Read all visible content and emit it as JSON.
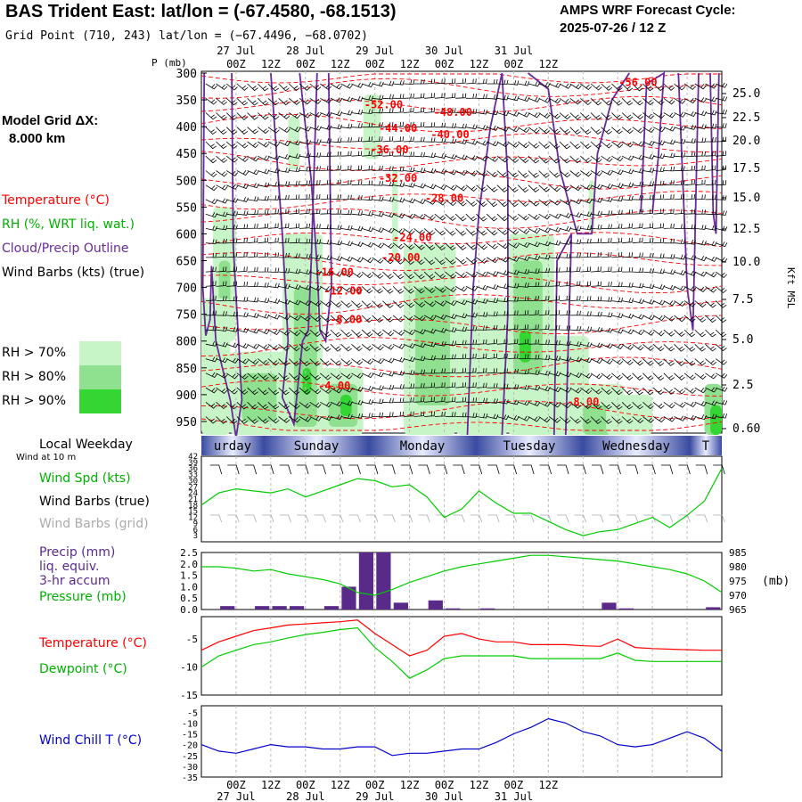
{
  "header": {
    "title": "BAS Trident East:  lat/lon = (-67.4580, -68.1513)",
    "subtitle": "Grid Point (710, 243) lat/lon = (−67.4496, −68.0702)",
    "cycle_line1": "AMPS WRF Forecast Cycle:",
    "cycle_line2": "2025-07-26 / 12  Z"
  },
  "model_grid": {
    "line1": "Model Grid ΔX:",
    "line2": "8.000 km"
  },
  "legend": {
    "temperature": "Temperature (°C)",
    "rh": "RH (%, WRT liq. wat.)",
    "cloud": "Cloud/Precip Outline",
    "wind": "Wind Barbs (kts) (true)",
    "rh70": "RH > 70%",
    "rh80": "RH > 80%",
    "rh90": "RH > 90%"
  },
  "colors": {
    "temp": "#ff0000",
    "rh": "#00b000",
    "cloud": "#6a2a9a",
    "wind_true": "#000000",
    "wind_grid": "#aaaaaa",
    "precip": "#5a2a8a",
    "pressure": "#00cc00",
    "dewpoint": "#00cc00",
    "windchill": "#0000cc",
    "rh70": "#c8f5c8",
    "rh80": "#8fe08f",
    "rh90": "#33d633",
    "weekday_band": "#3a4aa0"
  },
  "time_axis": {
    "top_labels": [
      {
        "hour": "00Z",
        "date": "27 Jul"
      },
      {
        "hour": "12Z",
        "date": ""
      },
      {
        "hour": "00Z",
        "date": "28 Jul"
      },
      {
        "hour": "12Z",
        "date": ""
      },
      {
        "hour": "00Z",
        "date": "29 Jul"
      },
      {
        "hour": "12Z",
        "date": ""
      },
      {
        "hour": "00Z",
        "date": "30 Jul"
      },
      {
        "hour": "12Z",
        "date": ""
      },
      {
        "hour": "00Z",
        "date": "31 Jul"
      },
      {
        "hour": "12Z",
        "date": ""
      }
    ],
    "weekday_label": "Local Weekday",
    "weekdays": [
      "urday",
      "Sunday",
      "Monday",
      "Tuesday",
      "Wednesday",
      "T"
    ]
  },
  "upper_panel": {
    "ylabel": "P (mb)",
    "pressure_ticks": [
      300,
      350,
      400,
      450,
      500,
      550,
      600,
      650,
      700,
      750,
      800,
      850,
      900,
      950
    ],
    "kft_ticks": [
      "25.0",
      "22.5",
      "20.0",
      "17.5",
      "15.0",
      "12.5",
      "10.0",
      "7.5",
      "5.0",
      "2.5",
      "0.60"
    ],
    "kft_label": "Kft MSL",
    "isotherm_labels": [
      "-56.00",
      "-52.00",
      "-48.00",
      "-44.00",
      "-40.00",
      "-36.00",
      "-32.00",
      "-28.00",
      "-24.00",
      "-20.00",
      "-16.00",
      "-12.00",
      "-8.00",
      "-8.00",
      "-4.00"
    ]
  },
  "wind_panel": {
    "labels": [
      "Wind at 10 m",
      "Wind Spd (kts)",
      "Wind Barbs (true)",
      "Wind Barbs (grid)"
    ],
    "y_ticks": [
      42,
      39,
      36,
      33,
      30,
      27,
      24,
      21,
      18,
      15,
      12,
      9,
      6,
      3
    ]
  },
  "precip_panel": {
    "labels": [
      "Precip (mm)",
      "liq. equiv.",
      "3-hr accum",
      "Pressure (mb)"
    ],
    "left_ticks": [
      "2.5",
      "2.0",
      "1.5",
      "1.0",
      "0.5",
      "0.0"
    ],
    "right_ticks": [
      985,
      980,
      975,
      970,
      965
    ],
    "right_unit": "(mb)"
  },
  "temp_panel": {
    "labels": [
      "Temperature (°C)",
      "Dewpoint (°C)"
    ],
    "y_ticks": [
      -5,
      -10,
      -15
    ]
  },
  "chill_panel": {
    "labels": [
      "Wind Chill T (°C)"
    ],
    "y_ticks": [
      -5,
      -10,
      -15,
      -20,
      -25,
      -30,
      -35
    ]
  },
  "chart_data": [
    {
      "type": "line",
      "name": "Wind Spd (kts)",
      "x_hours": [
        0,
        6,
        12,
        18,
        24,
        30,
        36,
        42,
        48,
        54,
        60,
        66,
        72,
        78,
        84,
        90,
        96,
        102,
        108,
        114,
        120,
        126,
        132,
        138,
        144,
        150,
        156,
        162,
        168,
        174,
        180
      ],
      "values": [
        18,
        24,
        26,
        25,
        24,
        26,
        22,
        25,
        28,
        31,
        30,
        27,
        28,
        22,
        12,
        16,
        25,
        19,
        14,
        14,
        10,
        6,
        3,
        5,
        6,
        9,
        12,
        7,
        13,
        20,
        36
      ],
      "ylim": [
        0,
        42
      ]
    },
    {
      "type": "bar",
      "name": "Precip (mm)",
      "x_hours": [
        3,
        9,
        15,
        21,
        27,
        33,
        39,
        45,
        51,
        57,
        63,
        69,
        75,
        81,
        87,
        93,
        99,
        105,
        111,
        117,
        123,
        129,
        135,
        141,
        147,
        153,
        159,
        165,
        171,
        177
      ],
      "values": [
        0.0,
        0.15,
        0.0,
        0.15,
        0.15,
        0.15,
        0.0,
        0.15,
        1.0,
        2.5,
        2.5,
        0.3,
        0.0,
        0.4,
        0.05,
        0.0,
        0.05,
        0.0,
        0.0,
        0.0,
        0.0,
        0.0,
        0.0,
        0.3,
        0.05,
        0.0,
        0.0,
        0.0,
        0.0,
        0.1
      ],
      "ylim": [
        0,
        2.5
      ]
    },
    {
      "type": "line",
      "name": "Pressure (mb)",
      "x_hours": [
        0,
        6,
        12,
        18,
        24,
        30,
        36,
        42,
        48,
        54,
        60,
        66,
        72,
        78,
        84,
        90,
        96,
        102,
        108,
        114,
        120,
        126,
        132,
        138,
        144,
        150,
        156,
        162,
        168,
        174,
        180
      ],
      "values": [
        980,
        980,
        979.5,
        978.5,
        979,
        977.5,
        976.5,
        975.5,
        974,
        971,
        970,
        972,
        974.5,
        976.5,
        978.5,
        980,
        981,
        982,
        983,
        984,
        984,
        983.5,
        983,
        982.5,
        982,
        981,
        980,
        979,
        977.5,
        975,
        971
      ],
      "ylim": [
        965,
        985
      ]
    },
    {
      "type": "line",
      "name": "Temperature (°C)",
      "x_hours": [
        0,
        6,
        12,
        18,
        24,
        30,
        36,
        42,
        48,
        54,
        60,
        66,
        72,
        78,
        84,
        90,
        96,
        102,
        108,
        114,
        120,
        126,
        132,
        138,
        144,
        150,
        156,
        162,
        168,
        174,
        180
      ],
      "values": [
        -7.0,
        -5.5,
        -4.5,
        -3.5,
        -3.0,
        -2.5,
        -2.3,
        -2.1,
        -1.9,
        -1.6,
        -4.0,
        -6.0,
        -8.0,
        -7.0,
        -4.5,
        -4.0,
        -5.0,
        -5.5,
        -5.5,
        -6.0,
        -6.0,
        -6.0,
        -6.2,
        -6.3,
        -5.0,
        -6.5,
        -6.7,
        -6.8,
        -6.9,
        -7.0,
        -7.0
      ],
      "ylim": [
        -15,
        -1
      ]
    },
    {
      "type": "line",
      "name": "Dewpoint (°C)",
      "x_hours": [
        0,
        6,
        12,
        18,
        24,
        30,
        36,
        42,
        48,
        54,
        60,
        66,
        72,
        78,
        84,
        90,
        96,
        102,
        108,
        114,
        120,
        126,
        132,
        138,
        144,
        150,
        156,
        162,
        168,
        174,
        180
      ],
      "values": [
        -10.0,
        -8.0,
        -7.0,
        -6.0,
        -5.5,
        -4.8,
        -4.2,
        -3.8,
        -3.3,
        -3.0,
        -6.5,
        -9.0,
        -12.0,
        -10.5,
        -8.5,
        -8.0,
        -8.0,
        -8.0,
        -8.0,
        -8.5,
        -8.5,
        -8.5,
        -8.5,
        -8.5,
        -7.5,
        -8.8,
        -9.0,
        -9.0,
        -9.0,
        -9.0,
        -9.0
      ],
      "ylim": [
        -15,
        -1
      ]
    },
    {
      "type": "line",
      "name": "Wind Chill T (°C)",
      "x_hours": [
        0,
        6,
        12,
        18,
        24,
        30,
        36,
        42,
        48,
        54,
        60,
        66,
        72,
        78,
        84,
        90,
        96,
        102,
        108,
        114,
        120,
        126,
        132,
        138,
        144,
        150,
        156,
        162,
        168,
        174,
        180
      ],
      "values": [
        -20,
        -23,
        -24,
        -22,
        -20,
        -21,
        -21,
        -22,
        -22,
        -21,
        -21,
        -25,
        -24,
        -24,
        -23,
        -22,
        -22,
        -19,
        -15,
        -12,
        -8,
        -10,
        -14,
        -16,
        -20,
        -21,
        -20,
        -17,
        -14,
        -17,
        -23
      ],
      "ylim": [
        -35,
        -2
      ]
    }
  ]
}
